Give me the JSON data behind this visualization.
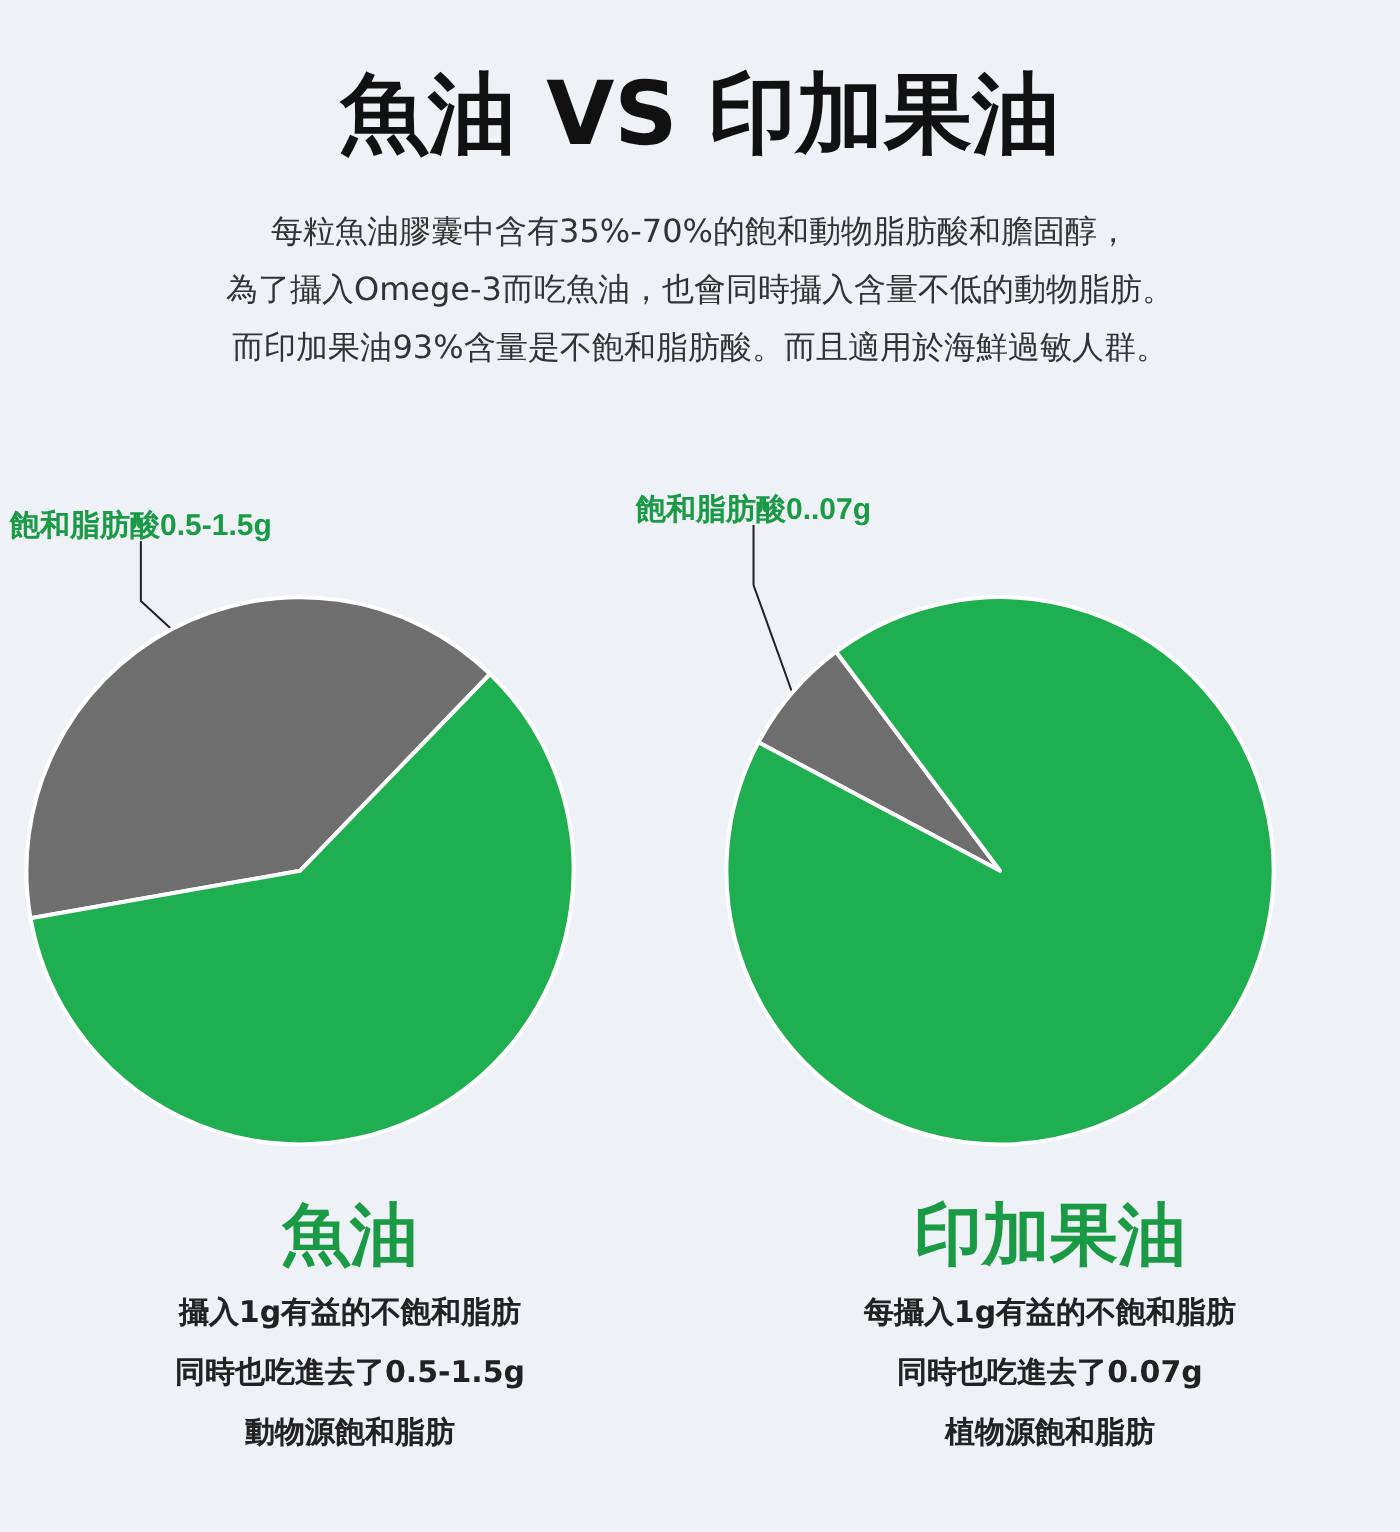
{
  "chart_data": [
    {
      "type": "other",
      "title": "魚油 VS 印加果油",
      "annotations": [
        "每粒魚油膠囊中含有35%-70%的飽和動物脂肪酸和膽固醇，",
        "為了攝入Omege-3而吃魚油，也會同時攝入含量不低的動物脂肪。",
        "而印加果油93%含量是不飽和脂肪酸。而且適用於海鮮過敏人群。"
      ]
    },
    {
      "type": "pie",
      "title": "魚油",
      "categories": [
        "飽和脂肪酸0.5-1.5g",
        null
      ],
      "values": [
        40,
        60
      ],
      "colors": [
        "#6e6e6e",
        "#1fae50"
      ],
      "annotations": [
        "攝入1g有益的不飽和脂肪",
        "同時也吃進去了0.5-1.5g",
        "動物源飽和脂肪"
      ]
    },
    {
      "type": "pie",
      "title": "印加果油",
      "categories": [
        "飽和脂肪酸0..07g",
        null
      ],
      "values": [
        7,
        93
      ],
      "colors": [
        "#6e6e6e",
        "#1fae50"
      ],
      "annotations": [
        "每攝入1g有益的不飽和脂肪",
        "同時也吃進去了0.07g",
        "植物源飽和脂肪"
      ]
    }
  ]
}
